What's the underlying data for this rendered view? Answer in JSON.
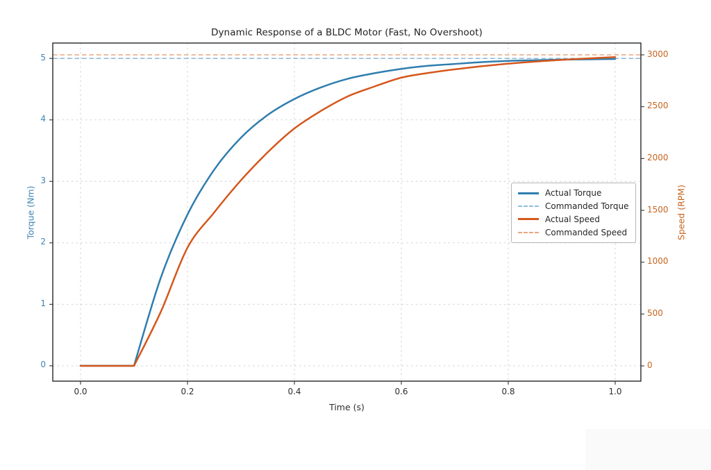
{
  "figure": {
    "background": "#ffffff"
  },
  "chart_data": {
    "type": "line",
    "title": "Dynamic Response of a BLDC Motor (Fast, No Overshoot)",
    "xlabel": "Time (s)",
    "ylabel_left": "Torque (Nm)",
    "ylabel_right": "Speed (RPM)",
    "xlim": [
      -0.052,
      1.048
    ],
    "ylim_left": [
      -0.25,
      5.25
    ],
    "ylim_right": [
      -150,
      3115
    ],
    "grid": true,
    "grid_color": "#cdcdcd",
    "spine_color": "#262626",
    "x_ticks": [
      "0.0",
      "0.2",
      "0.4",
      "0.6",
      "0.8",
      "1.0"
    ],
    "y_ticks_left": [
      "0",
      "1",
      "2",
      "3",
      "4",
      "5"
    ],
    "y_ticks_right": [
      "0",
      "500",
      "1000",
      "1500",
      "2000",
      "2500",
      "3000"
    ],
    "axis_colors": {
      "left": "#3f83b4",
      "right": "#c7641f",
      "x": "#2e2e2e"
    },
    "x": [
      0,
      0.05,
      0.1,
      0.15,
      0.2,
      0.25,
      0.3,
      0.35,
      0.4,
      0.45,
      0.5,
      0.55,
      0.6,
      0.65,
      0.7,
      0.75,
      0.8,
      0.85,
      0.9,
      0.95,
      1.0
    ],
    "series": [
      {
        "name": "Actual Torque",
        "axis": "left",
        "line": "solid",
        "color": "#2f7dae",
        "values": [
          0,
          0,
          0,
          1.43,
          2.46,
          3.19,
          3.71,
          4.08,
          4.34,
          4.53,
          4.67,
          4.76,
          4.83,
          4.88,
          4.91,
          4.94,
          4.96,
          4.97,
          4.98,
          4.985,
          4.99
        ]
      },
      {
        "name": "Commanded Torque",
        "axis": "left",
        "line": "dashed",
        "color": "#8fbcdb",
        "constant": 5.0
      },
      {
        "name": "Actual Speed",
        "axis": "right",
        "line": "solid",
        "color": "#d4571c",
        "values": [
          0,
          0,
          0,
          520,
          1140,
          1480,
          1790,
          2060,
          2290,
          2460,
          2600,
          2695,
          2780,
          2825,
          2860,
          2890,
          2915,
          2935,
          2952,
          2966,
          2978
        ]
      },
      {
        "name": "Commanded Speed",
        "axis": "right",
        "line": "dashed",
        "color": "#eaa57e",
        "constant": 3000
      }
    ],
    "legend_position": "center right",
    "step_time_s": 0.1
  }
}
